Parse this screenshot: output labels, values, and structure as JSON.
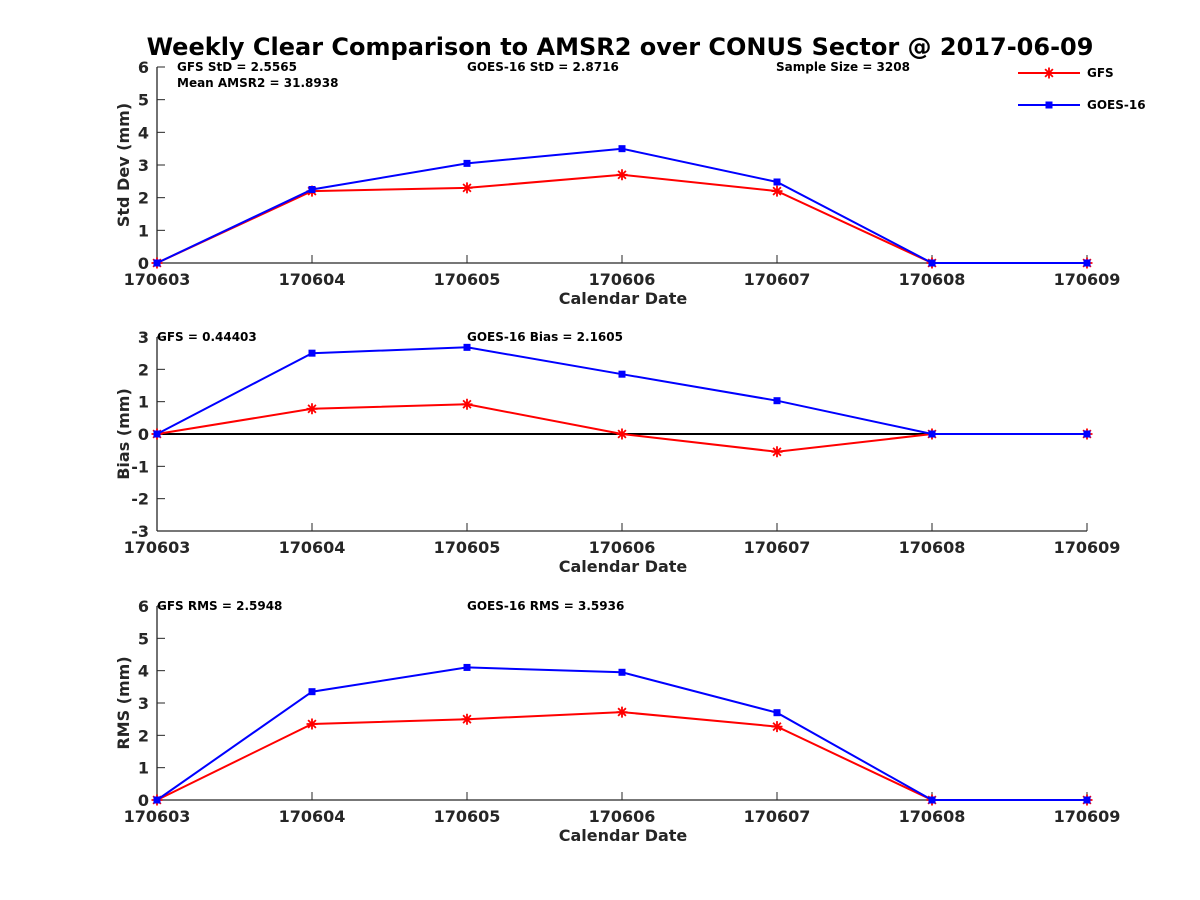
{
  "figure": {
    "title": "Weekly Clear Comparison to AMSR2 over CONUS Sector @ 2017-06-09"
  },
  "legend": {
    "placement": "top-right",
    "entries": [
      {
        "label": "GFS",
        "color": "#ff0000",
        "marker": "star"
      },
      {
        "label": "GOES-16",
        "color": "#0000ff",
        "marker": "square"
      }
    ]
  },
  "chart_data": [
    {
      "type": "line",
      "title": "Weekly Clear Comparison to AMSR2 over CONUS Sector @ 2017-06-09",
      "xlabel": "Calendar Date",
      "ylabel": "Std Dev (mm)",
      "categories": [
        "170603",
        "170604",
        "170605",
        "170606",
        "170607",
        "170608",
        "170609"
      ],
      "ylim": [
        0,
        6
      ],
      "yticks": [
        0,
        1,
        2,
        3,
        4,
        5,
        6
      ],
      "zero_line": false,
      "annotations": [
        {
          "id": "gfs_std",
          "text": "GFS StD = 2.5565"
        },
        {
          "id": "mean_amsr2",
          "text": "Mean AMSR2 = 31.8938"
        },
        {
          "id": "goes_std",
          "text": "GOES-16 StD = 2.8716"
        },
        {
          "id": "sample_size",
          "text": "Sample Size = 3208"
        }
      ],
      "series": [
        {
          "name": "GFS",
          "color": "#ff0000",
          "marker": "star",
          "values": [
            0,
            2.2,
            2.3,
            2.7,
            2.2,
            0,
            0
          ]
        },
        {
          "name": "GOES-16",
          "color": "#0000ff",
          "marker": "square",
          "values": [
            0,
            2.25,
            3.05,
            3.5,
            2.48,
            0,
            0
          ]
        }
      ]
    },
    {
      "type": "line",
      "title": "",
      "xlabel": "Calendar Date",
      "ylabel": "Bias (mm)",
      "categories": [
        "170603",
        "170604",
        "170605",
        "170606",
        "170607",
        "170608",
        "170609"
      ],
      "ylim": [
        -3,
        3
      ],
      "yticks": [
        -3,
        -2,
        -1,
        0,
        1,
        2,
        3
      ],
      "zero_line": true,
      "annotations": [
        {
          "id": "gfs_bias",
          "text": "GFS = 0.44403"
        },
        {
          "id": "goes_bias",
          "text": "GOES-16 Bias  = 2.1605"
        }
      ],
      "series": [
        {
          "name": "GFS",
          "color": "#ff0000",
          "marker": "star",
          "values": [
            0,
            0.78,
            0.92,
            0,
            -0.55,
            0,
            0
          ]
        },
        {
          "name": "GOES-16",
          "color": "#0000ff",
          "marker": "square",
          "values": [
            0,
            2.5,
            2.68,
            1.85,
            1.03,
            0,
            0
          ]
        }
      ]
    },
    {
      "type": "line",
      "title": "",
      "xlabel": "Calendar Date",
      "ylabel": "RMS (mm)",
      "categories": [
        "170603",
        "170604",
        "170605",
        "170606",
        "170607",
        "170608",
        "170609"
      ],
      "ylim": [
        0,
        6
      ],
      "yticks": [
        0,
        1,
        2,
        3,
        4,
        5,
        6
      ],
      "zero_line": false,
      "annotations": [
        {
          "id": "gfs_rms",
          "text": "GFS RMS = 2.5948"
        },
        {
          "id": "goes_rms",
          "text": "GOES-16 RMS = 3.5936"
        }
      ],
      "series": [
        {
          "name": "GFS",
          "color": "#ff0000",
          "marker": "star",
          "values": [
            0,
            2.35,
            2.5,
            2.72,
            2.27,
            0,
            0
          ]
        },
        {
          "name": "GOES-16",
          "color": "#0000ff",
          "marker": "square",
          "values": [
            0,
            3.35,
            4.1,
            3.95,
            2.7,
            0,
            0
          ]
        }
      ]
    }
  ]
}
